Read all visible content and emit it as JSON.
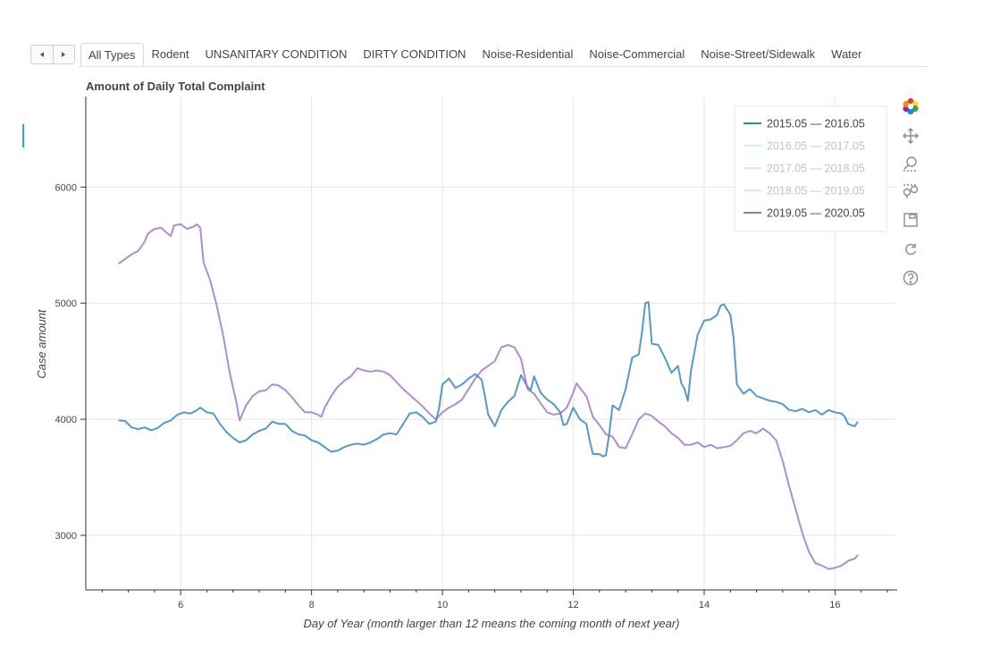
{
  "tabs": {
    "items": [
      "All Types",
      "Rodent",
      "UNSANITARY CONDITION",
      "DIRTY CONDITION",
      "Noise-Residential",
      "Noise-Commercial",
      "Noise-Street/Sidewalk",
      "Water"
    ],
    "active": "All Types"
  },
  "toolbar": {
    "tools": [
      "bokeh-logo-icon",
      "pan-icon",
      "box-zoom-icon",
      "wheel-zoom-icon",
      "save-icon",
      "reset-icon",
      "help-icon"
    ]
  },
  "colors": {
    "blue": "#1f77b4",
    "purple": "#9467bd",
    "light_cyan": "#9edae5",
    "light_orange": "#ffbb78",
    "light_green": "#98df8a"
  },
  "chart_data": {
    "type": "line",
    "title": "Amount of Daily Total Complaint",
    "xlabel": "Day of Year (month larger than 12 means the coming month of next year)",
    "ylabel": "Case amount",
    "xlim": [
      4.55,
      16.95
    ],
    "ylim": [
      2530,
      6780
    ],
    "xticks": [
      6,
      8,
      10,
      12,
      14,
      16
    ],
    "yticks": [
      3000,
      4000,
      5000,
      6000
    ],
    "x_minor_step": 0.4,
    "grid": true,
    "legend_position": "top-right",
    "series": [
      {
        "name": "2015.05 — 2016.05",
        "color": "#1f77b4",
        "visible": true,
        "points": [
          [
            5.05,
            3990
          ],
          [
            5.15,
            3985
          ],
          [
            5.25,
            3930
          ],
          [
            5.35,
            3915
          ],
          [
            5.45,
            3930
          ],
          [
            5.55,
            3905
          ],
          [
            5.65,
            3925
          ],
          [
            5.75,
            3970
          ],
          [
            5.85,
            3990
          ],
          [
            5.95,
            4040
          ],
          [
            6.05,
            4060
          ],
          [
            6.15,
            4050
          ],
          [
            6.25,
            4080
          ],
          [
            6.3,
            4100
          ],
          [
            6.4,
            4060
          ],
          [
            6.5,
            4050
          ],
          [
            6.6,
            3960
          ],
          [
            6.7,
            3890
          ],
          [
            6.8,
            3840
          ],
          [
            6.9,
            3800
          ],
          [
            7.0,
            3820
          ],
          [
            7.1,
            3870
          ],
          [
            7.2,
            3900
          ],
          [
            7.3,
            3920
          ],
          [
            7.4,
            3980
          ],
          [
            7.5,
            3960
          ],
          [
            7.6,
            3960
          ],
          [
            7.7,
            3900
          ],
          [
            7.8,
            3870
          ],
          [
            7.9,
            3860
          ],
          [
            8.0,
            3820
          ],
          [
            8.1,
            3800
          ],
          [
            8.2,
            3760
          ],
          [
            8.3,
            3720
          ],
          [
            8.4,
            3730
          ],
          [
            8.5,
            3760
          ],
          [
            8.6,
            3780
          ],
          [
            8.7,
            3790
          ],
          [
            8.8,
            3780
          ],
          [
            8.9,
            3800
          ],
          [
            9.0,
            3830
          ],
          [
            9.1,
            3870
          ],
          [
            9.2,
            3880
          ],
          [
            9.3,
            3870
          ],
          [
            9.4,
            3960
          ],
          [
            9.5,
            4050
          ],
          [
            9.6,
            4060
          ],
          [
            9.7,
            4020
          ],
          [
            9.8,
            3960
          ],
          [
            9.9,
            3980
          ],
          [
            9.95,
            4100
          ],
          [
            10.0,
            4300
          ],
          [
            10.1,
            4350
          ],
          [
            10.2,
            4270
          ],
          [
            10.3,
            4300
          ],
          [
            10.4,
            4350
          ],
          [
            10.5,
            4390
          ],
          [
            10.6,
            4340
          ],
          [
            10.65,
            4200
          ],
          [
            10.7,
            4040
          ],
          [
            10.8,
            3940
          ],
          [
            10.9,
            4080
          ],
          [
            11.0,
            4150
          ],
          [
            11.1,
            4200
          ],
          [
            11.2,
            4380
          ],
          [
            11.3,
            4280
          ],
          [
            11.35,
            4250
          ],
          [
            11.4,
            4370
          ],
          [
            11.5,
            4230
          ],
          [
            11.6,
            4170
          ],
          [
            11.7,
            4130
          ],
          [
            11.8,
            4060
          ],
          [
            11.85,
            3950
          ],
          [
            11.9,
            3960
          ],
          [
            12.0,
            4100
          ],
          [
            12.1,
            4000
          ],
          [
            12.2,
            3960
          ],
          [
            12.25,
            3820
          ],
          [
            12.3,
            3700
          ],
          [
            12.4,
            3700
          ],
          [
            12.45,
            3680
          ],
          [
            12.5,
            3690
          ],
          [
            12.55,
            3880
          ],
          [
            12.6,
            4120
          ],
          [
            12.7,
            4080
          ],
          [
            12.8,
            4260
          ],
          [
            12.9,
            4530
          ],
          [
            13.0,
            4560
          ],
          [
            13.05,
            4750
          ],
          [
            13.1,
            5000
          ],
          [
            13.15,
            5010
          ],
          [
            13.2,
            4650
          ],
          [
            13.3,
            4640
          ],
          [
            13.4,
            4530
          ],
          [
            13.5,
            4400
          ],
          [
            13.6,
            4460
          ],
          [
            13.65,
            4310
          ],
          [
            13.7,
            4260
          ],
          [
            13.75,
            4160
          ],
          [
            13.8,
            4420
          ],
          [
            13.9,
            4730
          ],
          [
            14.0,
            4850
          ],
          [
            14.1,
            4860
          ],
          [
            14.2,
            4900
          ],
          [
            14.25,
            4980
          ],
          [
            14.3,
            4990
          ],
          [
            14.4,
            4900
          ],
          [
            14.45,
            4700
          ],
          [
            14.5,
            4300
          ],
          [
            14.6,
            4220
          ],
          [
            14.7,
            4260
          ],
          [
            14.8,
            4200
          ],
          [
            14.9,
            4180
          ],
          [
            15.0,
            4160
          ],
          [
            15.1,
            4150
          ],
          [
            15.2,
            4130
          ],
          [
            15.3,
            4080
          ],
          [
            15.4,
            4070
          ],
          [
            15.5,
            4090
          ],
          [
            15.6,
            4060
          ],
          [
            15.7,
            4080
          ],
          [
            15.8,
            4040
          ],
          [
            15.9,
            4080
          ],
          [
            16.0,
            4060
          ],
          [
            16.1,
            4050
          ],
          [
            16.15,
            4020
          ],
          [
            16.2,
            3960
          ],
          [
            16.3,
            3940
          ],
          [
            16.35,
            3980
          ]
        ]
      },
      {
        "name": "2016.05 — 2017.05",
        "color": "#9edae5",
        "visible": false,
        "points": []
      },
      {
        "name": "2017.05 — 2018.05",
        "color": "#ffbb78",
        "visible": false,
        "points": []
      },
      {
        "name": "2018.05 — 2019.05",
        "color": "#98df8a",
        "visible": false,
        "points": []
      },
      {
        "name": "2019.05 — 2020.05",
        "color": "#9467bd",
        "visible": true,
        "points": [
          [
            5.05,
            5340
          ],
          [
            5.15,
            5380
          ],
          [
            5.25,
            5420
          ],
          [
            5.35,
            5450
          ],
          [
            5.45,
            5530
          ],
          [
            5.5,
            5600
          ],
          [
            5.6,
            5640
          ],
          [
            5.7,
            5650
          ],
          [
            5.8,
            5600
          ],
          [
            5.85,
            5580
          ],
          [
            5.9,
            5670
          ],
          [
            6.0,
            5680
          ],
          [
            6.1,
            5640
          ],
          [
            6.2,
            5660
          ],
          [
            6.25,
            5680
          ],
          [
            6.3,
            5650
          ],
          [
            6.35,
            5350
          ],
          [
            6.45,
            5200
          ],
          [
            6.55,
            4980
          ],
          [
            6.65,
            4720
          ],
          [
            6.75,
            4400
          ],
          [
            6.85,
            4150
          ],
          [
            6.9,
            3990
          ],
          [
            7.0,
            4120
          ],
          [
            7.1,
            4200
          ],
          [
            7.2,
            4240
          ],
          [
            7.3,
            4250
          ],
          [
            7.4,
            4300
          ],
          [
            7.5,
            4290
          ],
          [
            7.6,
            4250
          ],
          [
            7.7,
            4190
          ],
          [
            7.8,
            4120
          ],
          [
            7.9,
            4060
          ],
          [
            8.0,
            4060
          ],
          [
            8.1,
            4040
          ],
          [
            8.15,
            4020
          ],
          [
            8.2,
            4100
          ],
          [
            8.3,
            4200
          ],
          [
            8.4,
            4280
          ],
          [
            8.5,
            4330
          ],
          [
            8.6,
            4370
          ],
          [
            8.7,
            4440
          ],
          [
            8.8,
            4420
          ],
          [
            8.9,
            4410
          ],
          [
            9.0,
            4420
          ],
          [
            9.1,
            4410
          ],
          [
            9.2,
            4380
          ],
          [
            9.3,
            4320
          ],
          [
            9.4,
            4260
          ],
          [
            9.5,
            4210
          ],
          [
            9.6,
            4160
          ],
          [
            9.7,
            4110
          ],
          [
            9.8,
            4050
          ],
          [
            9.9,
            4000
          ],
          [
            10.0,
            4060
          ],
          [
            10.1,
            4100
          ],
          [
            10.2,
            4130
          ],
          [
            10.3,
            4170
          ],
          [
            10.4,
            4260
          ],
          [
            10.5,
            4350
          ],
          [
            10.6,
            4420
          ],
          [
            10.7,
            4460
          ],
          [
            10.8,
            4500
          ],
          [
            10.9,
            4620
          ],
          [
            11.0,
            4640
          ],
          [
            11.1,
            4620
          ],
          [
            11.2,
            4520
          ],
          [
            11.3,
            4260
          ],
          [
            11.4,
            4220
          ],
          [
            11.5,
            4140
          ],
          [
            11.6,
            4060
          ],
          [
            11.7,
            4040
          ],
          [
            11.8,
            4050
          ],
          [
            11.9,
            4100
          ],
          [
            12.0,
            4230
          ],
          [
            12.05,
            4310
          ],
          [
            12.1,
            4270
          ],
          [
            12.2,
            4200
          ],
          [
            12.3,
            4020
          ],
          [
            12.4,
            3950
          ],
          [
            12.5,
            3870
          ],
          [
            12.6,
            3850
          ],
          [
            12.7,
            3760
          ],
          [
            12.8,
            3750
          ],
          [
            12.9,
            3870
          ],
          [
            13.0,
            4000
          ],
          [
            13.1,
            4050
          ],
          [
            13.2,
            4030
          ],
          [
            13.3,
            3980
          ],
          [
            13.4,
            3940
          ],
          [
            13.5,
            3880
          ],
          [
            13.6,
            3840
          ],
          [
            13.7,
            3780
          ],
          [
            13.8,
            3780
          ],
          [
            13.9,
            3800
          ],
          [
            14.0,
            3760
          ],
          [
            14.1,
            3780
          ],
          [
            14.2,
            3750
          ],
          [
            14.3,
            3760
          ],
          [
            14.4,
            3770
          ],
          [
            14.5,
            3820
          ],
          [
            14.6,
            3880
          ],
          [
            14.7,
            3900
          ],
          [
            14.8,
            3880
          ],
          [
            14.9,
            3920
          ],
          [
            15.0,
            3880
          ],
          [
            15.1,
            3820
          ],
          [
            15.2,
            3640
          ],
          [
            15.3,
            3420
          ],
          [
            15.4,
            3220
          ],
          [
            15.5,
            3020
          ],
          [
            15.6,
            2860
          ],
          [
            15.7,
            2760
          ],
          [
            15.8,
            2740
          ],
          [
            15.9,
            2710
          ],
          [
            16.0,
            2720
          ],
          [
            16.1,
            2740
          ],
          [
            16.2,
            2780
          ],
          [
            16.3,
            2800
          ],
          [
            16.35,
            2830
          ]
        ]
      }
    ]
  }
}
